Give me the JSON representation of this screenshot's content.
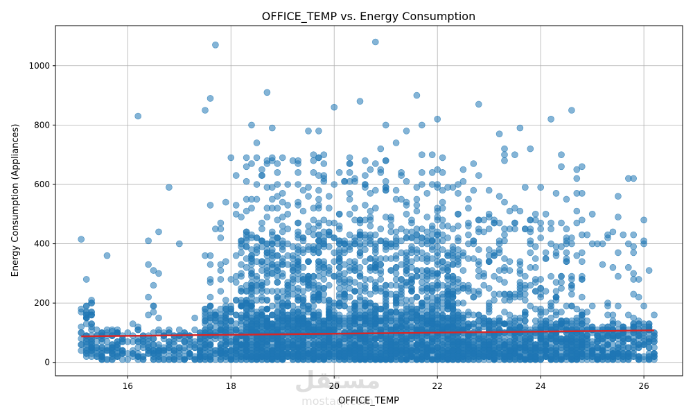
{
  "chart_data": {
    "type": "scatter",
    "title": "OFFICE_TEMP vs. Energy Consumption",
    "xlabel": "OFFICE_TEMP",
    "ylabel": "Energy Consumption (Appliances)",
    "xlim": [
      14.6,
      26.75
    ],
    "ylim": [
      -45,
      1135
    ],
    "xticks": [
      16,
      18,
      20,
      22,
      24,
      26
    ],
    "yticks": [
      0,
      200,
      400,
      600,
      800,
      1000
    ],
    "grid": true,
    "point_color": "#1f77b4",
    "trend_color": "#d62728",
    "regression": {
      "x": [
        15.1,
        26.2
      ],
      "y": [
        88,
        108
      ]
    },
    "points": {
      "x": [
        15.1,
        15.2,
        15.3,
        15.6,
        15.7,
        16.2,
        16.6,
        16.8,
        17.0,
        17.3,
        17.5,
        17.6,
        17.7,
        17.8,
        18.0,
        18.1,
        18.3,
        18.4,
        18.5,
        18.7,
        18.8,
        19.0,
        19.3,
        19.5,
        19.7,
        19.8,
        20.0,
        20.1,
        20.3,
        20.5,
        20.6,
        20.8,
        20.9,
        21.0,
        21.2,
        21.4,
        21.6,
        21.7,
        21.9,
        22.0,
        22.1,
        22.3,
        22.5,
        22.8,
        23.0,
        23.2,
        23.3,
        23.6,
        23.8,
        24.0,
        24.2,
        24.4,
        24.6,
        24.8,
        25.0,
        25.3,
        25.5,
        25.7,
        25.8,
        26.0
      ],
      "y": [
        415,
        280,
        210,
        360,
        105,
        830,
        440,
        590,
        400,
        150,
        850,
        890,
        1070,
        470,
        690,
        630,
        610,
        800,
        740,
        910,
        790,
        690,
        530,
        780,
        780,
        700,
        860,
        640,
        670,
        880,
        590,
        1080,
        720,
        800,
        740,
        780,
        900,
        800,
        640,
        820,
        640,
        590,
        650,
        870,
        580,
        770,
        720,
        790,
        720,
        590,
        820,
        660,
        850,
        660,
        500,
        190,
        560,
        620,
        620,
        190
      ]
    },
    "bands": [
      {
        "x_range": [
          15.1,
          15.35
        ],
        "y_range": [
          20,
          200
        ],
        "count": 60
      },
      {
        "x_range": [
          15.35,
          16.0
        ],
        "y_range": [
          10,
          110
        ],
        "count": 90
      },
      {
        "x_range": [
          16.1,
          17.5
        ],
        "y_range": [
          10,
          110
        ],
        "count": 180
      },
      {
        "x_range": [
          16.1,
          16.6
        ],
        "y_range": [
          110,
          420
        ],
        "count": 14
      },
      {
        "x_range": [
          17.5,
          18.2
        ],
        "y_range": [
          10,
          200
        ],
        "count": 200
      },
      {
        "x_range": [
          17.5,
          18.2
        ],
        "y_range": [
          200,
          600
        ],
        "count": 28
      },
      {
        "x_range": [
          18.2,
          22.5
        ],
        "y_range": [
          10,
          150
        ],
        "count": 1600
      },
      {
        "x_range": [
          18.2,
          22.5
        ],
        "y_range": [
          150,
          430
        ],
        "count": 900
      },
      {
        "x_range": [
          18.2,
          22.5
        ],
        "y_range": [
          430,
          700
        ],
        "count": 200
      },
      {
        "x_range": [
          22.5,
          24.8
        ],
        "y_range": [
          10,
          140
        ],
        "count": 700
      },
      {
        "x_range": [
          22.5,
          24.8
        ],
        "y_range": [
          140,
          480
        ],
        "count": 220
      },
      {
        "x_range": [
          22.5,
          24.8
        ],
        "y_range": [
          480,
          720
        ],
        "count": 30
      },
      {
        "x_range": [
          24.8,
          26.2
        ],
        "y_range": [
          10,
          130
        ],
        "count": 300
      },
      {
        "x_range": [
          24.8,
          26.2
        ],
        "y_range": [
          130,
          500
        ],
        "count": 45
      }
    ]
  },
  "watermark": {
    "arabic": "مستقل",
    "latin": "mostaql.com"
  }
}
